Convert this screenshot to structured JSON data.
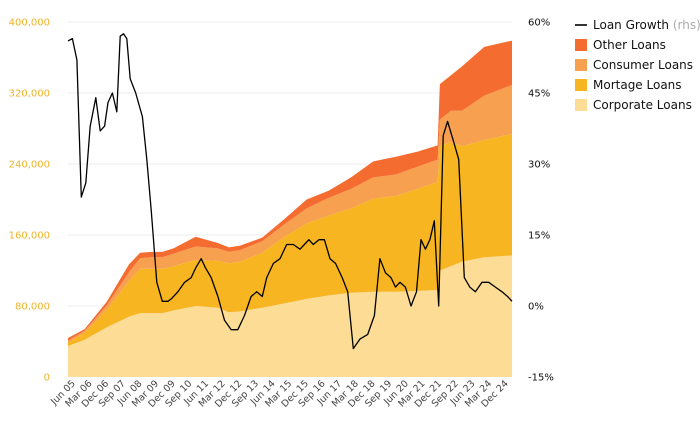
{
  "chart_data": {
    "type": "area",
    "y_left": {
      "range": [
        0,
        400000
      ],
      "ticks": [
        "0",
        "80,000",
        "160,000",
        "240,000",
        "320,000",
        "400,000"
      ],
      "tick_values": [
        0,
        80000,
        160000,
        240000,
        320000,
        400000
      ]
    },
    "y_right": {
      "range": [
        -15,
        60
      ],
      "ticks": [
        "-15%",
        "0%",
        "15%",
        "30%",
        "45%",
        "60%"
      ],
      "tick_values": [
        -15,
        0,
        15,
        30,
        45,
        60
      ]
    },
    "x_range": [
      2005.25,
      2025.25
    ],
    "x_ticks": [
      {
        "label": "Jun 05",
        "x": 2005.42
      },
      {
        "label": "Mar 06",
        "x": 2006.17
      },
      {
        "label": "Dec 06",
        "x": 2006.92
      },
      {
        "label": "Sep 07",
        "x": 2007.67
      },
      {
        "label": "Jun 08",
        "x": 2008.42
      },
      {
        "label": "Mar 09",
        "x": 2009.17
      },
      {
        "label": "Dec 09",
        "x": 2009.92
      },
      {
        "label": "Sep 10",
        "x": 2010.67
      },
      {
        "label": "Jun 11",
        "x": 2011.42
      },
      {
        "label": "Mar 12",
        "x": 2012.17
      },
      {
        "label": "Dec 12",
        "x": 2012.92
      },
      {
        "label": "Sep 13",
        "x": 2013.67
      },
      {
        "label": "Jun 14",
        "x": 2014.42
      },
      {
        "label": "Mar 15",
        "x": 2015.17
      },
      {
        "label": "Dec 15",
        "x": 2015.92
      },
      {
        "label": "Sep 16",
        "x": 2016.67
      },
      {
        "label": "Jun 17",
        "x": 2017.42
      },
      {
        "label": "Mar 18",
        "x": 2018.17
      },
      {
        "label": "Dec 18",
        "x": 2018.92
      },
      {
        "label": "Sep 19",
        "x": 2019.67
      },
      {
        "label": "Jun 20",
        "x": 2020.42
      },
      {
        "label": "Mar 21",
        "x": 2021.17
      },
      {
        "label": "Dec 21",
        "x": 2021.92
      },
      {
        "label": "Sep 22",
        "x": 2022.67
      },
      {
        "label": "Jun 23",
        "x": 2023.42
      },
      {
        "label": "Mar 24",
        "x": 2024.17
      },
      {
        "label": "Dec 24",
        "x": 2024.92
      }
    ],
    "x": [
      2005.25,
      2006.0,
      2007.0,
      2008.0,
      2008.5,
      2009.0,
      2009.5,
      2010.0,
      2011.0,
      2012.0,
      2012.5,
      2013.0,
      2014.0,
      2015.0,
      2016.0,
      2017.0,
      2018.0,
      2019.0,
      2020.0,
      2021.0,
      2021.9,
      2022.0,
      2022.5,
      2023.0,
      2024.0,
      2025.25
    ],
    "series": [
      {
        "name": "Corporate Loans",
        "color": "#fddc96",
        "values": [
          35000,
          42000,
          56000,
          68000,
          72000,
          72000,
          72000,
          75000,
          80000,
          78000,
          73000,
          74000,
          78000,
          83000,
          88000,
          92000,
          95000,
          96000,
          96000,
          97000,
          98000,
          120000,
          125000,
          130000,
          135000,
          137000
        ]
      },
      {
        "name": "Mortage Loans",
        "color": "#f7b521",
        "values": [
          4000,
          8000,
          20000,
          40000,
          50000,
          50000,
          50000,
          50000,
          52000,
          53000,
          55000,
          56000,
          62000,
          75000,
          85000,
          90000,
          95000,
          105000,
          108000,
          115000,
          122000,
          140000,
          140000,
          130000,
          132000,
          137000
        ]
      },
      {
        "name": "Consumer Loans",
        "color": "#f7a050",
        "values": [
          2000,
          2000,
          5000,
          10000,
          12000,
          13000,
          13000,
          14000,
          15000,
          14000,
          13000,
          13000,
          13000,
          14000,
          17000,
          20000,
          22000,
          24000,
          24000,
          25000,
          25000,
          30000,
          35000,
          40000,
          50000,
          55000
        ]
      },
      {
        "name": "Other Loans",
        "color": "#f46c30",
        "values": [
          3000,
          2000,
          4000,
          9000,
          6000,
          6000,
          6000,
          6000,
          11000,
          6000,
          5000,
          5000,
          4000,
          6000,
          10000,
          8000,
          13000,
          18000,
          20000,
          17000,
          16000,
          40000,
          40000,
          50000,
          55000,
          50000
        ]
      }
    ],
    "line_series": {
      "name": "Loan Growth",
      "name_suffix": "(rhs)",
      "color": "#000000",
      "axis": "right",
      "x": [
        2005.25,
        2005.45,
        2005.65,
        2005.85,
        2006.05,
        2006.25,
        2006.5,
        2006.7,
        2006.9,
        2007.05,
        2007.25,
        2007.45,
        2007.6,
        2007.75,
        2007.9,
        2008.05,
        2008.3,
        2008.6,
        2008.8,
        2009.0,
        2009.25,
        2009.5,
        2009.75,
        2009.9,
        2010.2,
        2010.5,
        2010.8,
        2011.0,
        2011.25,
        2011.45,
        2011.7,
        2012.0,
        2012.3,
        2012.6,
        2012.9,
        2013.2,
        2013.5,
        2013.75,
        2014.0,
        2014.2,
        2014.5,
        2014.8,
        2015.1,
        2015.4,
        2015.7,
        2015.9,
        2016.1,
        2016.3,
        2016.55,
        2016.8,
        2017.05,
        2017.3,
        2017.6,
        2017.85,
        2018.1,
        2018.4,
        2018.75,
        2019.05,
        2019.3,
        2019.55,
        2019.8,
        2020.0,
        2020.2,
        2020.45,
        2020.7,
        2020.95,
        2021.15,
        2021.35,
        2021.55,
        2021.75,
        2021.95,
        2022.15,
        2022.35,
        2022.6,
        2022.85,
        2023.1,
        2023.35,
        2023.6,
        2023.9,
        2024.2,
        2024.5,
        2024.8,
        2025.05,
        2025.25
      ],
      "values": [
        56,
        56.5,
        52,
        23,
        26,
        38,
        44,
        37,
        38,
        43,
        45,
        41,
        57,
        57.5,
        56.5,
        48,
        45,
        40,
        31,
        20,
        5,
        1,
        1,
        1.5,
        3,
        5,
        6,
        8,
        10,
        8,
        6,
        2,
        -3,
        -5,
        -5,
        -2,
        2,
        3,
        2,
        6,
        9,
        10,
        13,
        13,
        12,
        13,
        14,
        13,
        14,
        14,
        10,
        9,
        6,
        3,
        -9,
        -7,
        -6,
        -2,
        10,
        7,
        6,
        4,
        5,
        4,
        0,
        3,
        14,
        12,
        14,
        18,
        0,
        36,
        39,
        35,
        31,
        6,
        4,
        3,
        5,
        5,
        4,
        3,
        2,
        1
      ]
    },
    "legend_position": "top-right"
  }
}
